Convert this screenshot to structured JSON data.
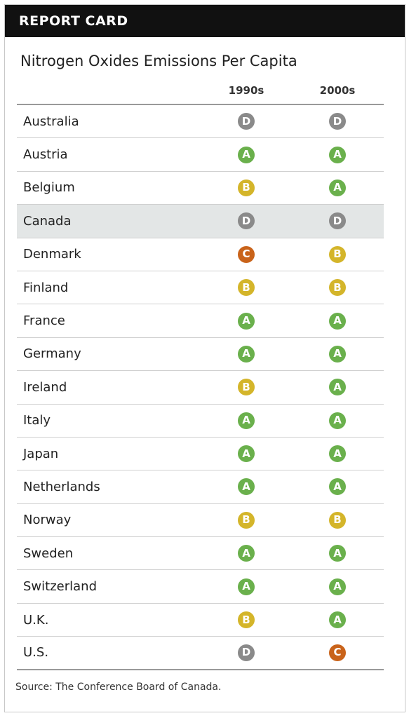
{
  "header": {
    "title": "REPORT CARD"
  },
  "chart_data": {
    "type": "table",
    "title": "Nitrogen Oxides Emissions Per Capita",
    "columns": [
      "1990s",
      "2000s"
    ],
    "rows": [
      {
        "country": "Australia",
        "grades": [
          "D",
          "D"
        ]
      },
      {
        "country": "Austria",
        "grades": [
          "A",
          "A"
        ]
      },
      {
        "country": "Belgium",
        "grades": [
          "B",
          "A"
        ]
      },
      {
        "country": "Canada",
        "grades": [
          "D",
          "D"
        ],
        "highlighted": true
      },
      {
        "country": "Denmark",
        "grades": [
          "C",
          "B"
        ]
      },
      {
        "country": "Finland",
        "grades": [
          "B",
          "B"
        ]
      },
      {
        "country": "France",
        "grades": [
          "A",
          "A"
        ]
      },
      {
        "country": "Germany",
        "grades": [
          "A",
          "A"
        ]
      },
      {
        "country": "Ireland",
        "grades": [
          "B",
          "A"
        ]
      },
      {
        "country": "Italy",
        "grades": [
          "A",
          "A"
        ]
      },
      {
        "country": "Japan",
        "grades": [
          "A",
          "A"
        ]
      },
      {
        "country": "Netherlands",
        "grades": [
          "A",
          "A"
        ]
      },
      {
        "country": "Norway",
        "grades": [
          "B",
          "B"
        ]
      },
      {
        "country": "Sweden",
        "grades": [
          "A",
          "A"
        ]
      },
      {
        "country": "Switzerland",
        "grades": [
          "A",
          "A"
        ]
      },
      {
        "country": "U.K.",
        "grades": [
          "B",
          "A"
        ]
      },
      {
        "country": "U.S.",
        "grades": [
          "D",
          "C"
        ]
      }
    ],
    "grade_colors": {
      "A": "#6ab04c",
      "B": "#d4b52a",
      "C": "#c9631a",
      "D": "#8a8a8a"
    }
  },
  "source": "Source: The Conference Board of Canada."
}
